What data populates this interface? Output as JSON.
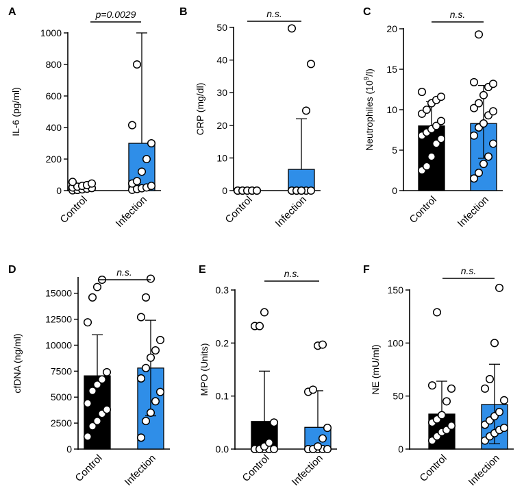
{
  "figure": {
    "bar_colors": {
      "Control": "#000000",
      "Infection": "#2f8ee8"
    },
    "point_fill": "#ffffff",
    "point_stroke": "#000000"
  },
  "chart_data": [
    {
      "panel": "A",
      "type": "bar",
      "categories": [
        "Control",
        "Infection"
      ],
      "ylabel": "IL-6 (pg/ml)",
      "ylim": [
        0,
        1000
      ],
      "yticks": [
        0,
        200,
        400,
        600,
        800,
        1000
      ],
      "significance": "p=0.0029",
      "bars": [
        {
          "category": "Control",
          "value": 18,
          "error_low": 0,
          "error_high": 30,
          "points": [
            2,
            4,
            8,
            12,
            16,
            20,
            25,
            30,
            35,
            45,
            55
          ]
        },
        {
          "category": "Infection",
          "value": 300,
          "error_low": 0,
          "error_high": 1000,
          "points": [
            5,
            10,
            15,
            20,
            30,
            45,
            60,
            120,
            200,
            300,
            415,
            800
          ]
        }
      ]
    },
    {
      "panel": "B",
      "type": "bar",
      "categories": [
        "Control",
        "Infection"
      ],
      "ylabel": "CRP (mg/dl)",
      "ylim": [
        0,
        50
      ],
      "yticks": [
        0,
        10,
        20,
        30,
        40,
        50
      ],
      "significance": "n.s.",
      "bars": [
        {
          "category": "Control",
          "value": 0.1,
          "error_low": 0,
          "error_high": 0.3,
          "points": [
            0,
            0,
            0,
            0,
            0,
            0,
            0,
            0,
            0,
            0
          ]
        },
        {
          "category": "Infection",
          "value": 6.5,
          "error_low": 0,
          "error_high": 22,
          "points": [
            0,
            0,
            0,
            0,
            0,
            0,
            0,
            0,
            24.5,
            38.8,
            49.7
          ]
        }
      ]
    },
    {
      "panel": "C",
      "type": "bar",
      "categories": [
        "Control",
        "Infection"
      ],
      "ylabel_main": "Neutrophiles (10",
      "ylabel_sup": "9",
      "ylabel_end": "/l)",
      "ylim": [
        0,
        20
      ],
      "yticks": [
        0,
        5,
        10,
        15,
        20
      ],
      "significance": "n.s.",
      "bars": [
        {
          "category": "Control",
          "value": 8.0,
          "error_low": 5.0,
          "error_high": 11.0,
          "points": [
            2.5,
            3.0,
            4.2,
            5.8,
            6.4,
            6.8,
            7.2,
            7.6,
            8.0,
            8.6,
            9.5,
            10.0,
            10.8,
            11.2,
            11.6,
            12.2
          ]
        },
        {
          "category": "Infection",
          "value": 8.3,
          "error_low": 4.0,
          "error_high": 13.0,
          "points": [
            1.5,
            2.2,
            3.3,
            4.2,
            5.8,
            6.8,
            7.8,
            8.3,
            9.3,
            9.8,
            10.2,
            10.8,
            11.8,
            12.8,
            13.2,
            13.4,
            19.3
          ]
        }
      ]
    },
    {
      "panel": "D",
      "type": "bar",
      "categories": [
        "Control",
        "Infection"
      ],
      "ylabel": "cfDNA (ng/ml)",
      "ylim": [
        0,
        16500
      ],
      "yticks": [
        0,
        2500,
        5000,
        7500,
        10000,
        12500,
        15000
      ],
      "significance": "n.s.",
      "bars": [
        {
          "category": "Control",
          "value": 7050,
          "error_low": 3000,
          "error_high": 11000,
          "points": [
            1200,
            2200,
            2700,
            3400,
            3800,
            4400,
            5600,
            6200,
            6700,
            7400,
            12200,
            14600,
            15600,
            16300
          ]
        },
        {
          "category": "Infection",
          "value": 7800,
          "error_low": 3200,
          "error_high": 12400,
          "points": [
            1100,
            2700,
            3500,
            4600,
            5500,
            6800,
            7800,
            8800,
            9500,
            10500,
            12700,
            14600,
            16400
          ]
        }
      ]
    },
    {
      "panel": "E",
      "type": "bar",
      "categories": [
        "Control",
        "Infection"
      ],
      "ylabel": "MPO (Units)",
      "ylim": [
        0,
        0.3
      ],
      "yticks": [
        0.0,
        0.1,
        0.2,
        0.3
      ],
      "ytick_labels": [
        "0.0",
        "0.1",
        "0.2",
        "0.3"
      ],
      "significance": "n.s.",
      "bars": [
        {
          "category": "Control",
          "value": 0.052,
          "error_low": 0,
          "error_high": 0.147,
          "points": [
            0,
            0,
            0,
            0,
            0,
            0,
            0,
            0.005,
            0.012,
            0.05,
            0.232,
            0.232,
            0.258
          ]
        },
        {
          "category": "Infection",
          "value": 0.041,
          "error_low": 0,
          "error_high": 0.11,
          "points": [
            0,
            0,
            0,
            0,
            0,
            0,
            0,
            0.005,
            0.02,
            0.04,
            0.108,
            0.112,
            0.195,
            0.197
          ]
        }
      ]
    },
    {
      "panel": "F",
      "type": "bar",
      "categories": [
        "Control",
        "Infection"
      ],
      "ylabel": "NE (mU/ml)",
      "ylim": [
        0,
        150
      ],
      "yticks": [
        0,
        50,
        100,
        150
      ],
      "significance": "n.s.",
      "bars": [
        {
          "category": "Control",
          "value": 33,
          "error_low": 5,
          "error_high": 64,
          "points": [
            8,
            12,
            16,
            18,
            22,
            25,
            28,
            32,
            45,
            57,
            60,
            129
          ]
        },
        {
          "category": "Infection",
          "value": 42,
          "error_low": 5,
          "error_high": 80,
          "points": [
            8,
            12,
            15,
            18,
            20,
            23,
            27,
            31,
            35,
            46,
            57,
            66,
            100,
            152
          ]
        }
      ]
    }
  ]
}
